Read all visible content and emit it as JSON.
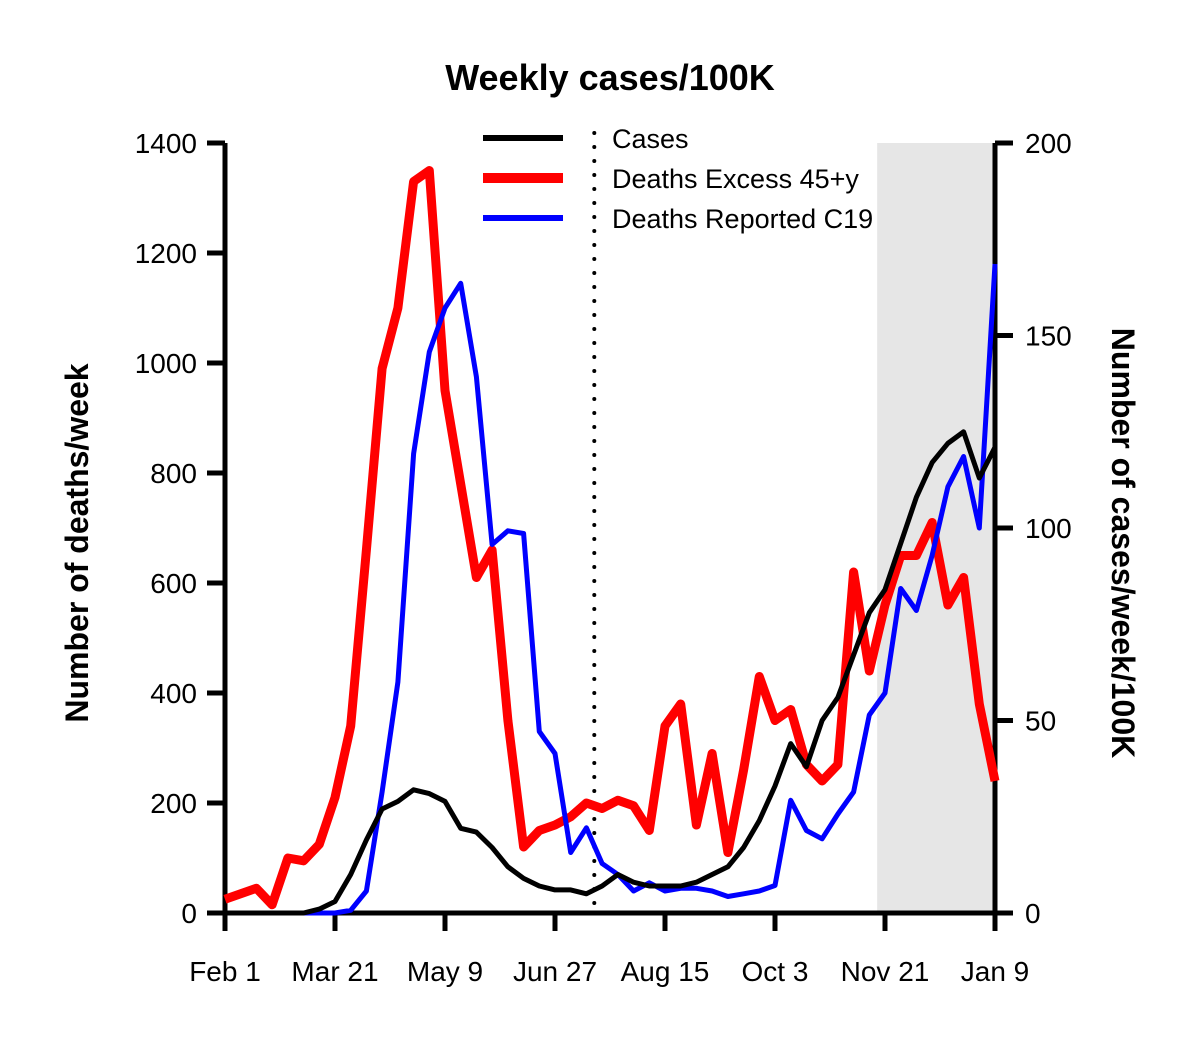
{
  "chart_data": {
    "type": "line",
    "title": "Weekly cases/100K",
    "xlabel": "",
    "ylabel": "Number of deaths/week",
    "ylabel_right": "Number of cases/week/100K",
    "x_ticks": [
      "Feb 1",
      "Mar 21",
      "May 9",
      "Jun 27",
      "Aug 15",
      "Oct 3",
      "Nov 21",
      "Jan 9"
    ],
    "x_range_weeks": [
      0,
      49
    ],
    "ylim": [
      0,
      1400
    ],
    "yticks": [
      0,
      200,
      400,
      600,
      800,
      1000,
      1200,
      1400
    ],
    "ylim_right": [
      0,
      200
    ],
    "yticks_right": [
      0,
      50,
      100,
      150,
      200
    ],
    "shaded_region_weeks": [
      41.5,
      49
    ],
    "dotted_vertical_line_week": 23.5,
    "legend_position": "top-center",
    "series": [
      {
        "name": "Cases",
        "axis": "right",
        "color": "#000000",
        "weeks": [
          0,
          1,
          2,
          3,
          4,
          5,
          6,
          7,
          8,
          9,
          10,
          11,
          12,
          13,
          14,
          15,
          16,
          17,
          18,
          19,
          20,
          21,
          22,
          23,
          24,
          25,
          26,
          27,
          28,
          29,
          30,
          31,
          32,
          33,
          34,
          35,
          36,
          37,
          38,
          39,
          40,
          41,
          42,
          43,
          44,
          45,
          46,
          47,
          48,
          49
        ],
        "values": [
          0,
          0,
          0,
          0,
          0,
          0,
          1,
          3,
          10,
          19,
          27,
          29,
          32,
          31,
          29,
          22,
          21,
          17,
          12,
          9,
          7,
          6,
          6,
          5,
          7,
          10,
          8,
          7,
          7,
          7,
          8,
          10,
          12,
          17,
          24,
          33,
          44,
          38,
          50,
          56,
          67,
          78,
          84,
          96,
          108,
          117,
          122,
          125,
          113,
          121
        ]
      },
      {
        "name": "Deaths Excess 45+y",
        "axis": "left",
        "color": "#ff0000",
        "weeks": [
          0,
          1,
          2,
          3,
          4,
          5,
          6,
          7,
          8,
          9,
          10,
          11,
          12,
          13,
          14,
          15,
          16,
          17,
          18,
          19,
          20,
          21,
          22,
          23,
          24,
          25,
          26,
          27,
          28,
          29,
          30,
          31,
          32,
          33,
          34,
          35,
          36,
          37,
          38,
          39,
          40,
          41,
          42,
          43,
          44,
          45,
          46,
          47,
          48,
          49
        ],
        "values": [
          25,
          35,
          45,
          15,
          100,
          95,
          125,
          210,
          340,
          660,
          990,
          1100,
          1330,
          1350,
          950,
          780,
          610,
          660,
          350,
          120,
          150,
          160,
          175,
          200,
          190,
          205,
          195,
          150,
          340,
          380,
          160,
          290,
          110,
          260,
          430,
          350,
          370,
          270,
          240,
          270,
          620,
          440,
          560,
          650,
          650,
          710,
          560,
          610,
          380,
          240
        ]
      },
      {
        "name": "Deaths Reported C19",
        "axis": "left",
        "color": "#0000ff",
        "weeks": [
          0,
          1,
          2,
          3,
          4,
          5,
          6,
          7,
          8,
          9,
          10,
          11,
          12,
          13,
          14,
          15,
          16,
          17,
          18,
          19,
          20,
          21,
          22,
          23,
          24,
          25,
          26,
          27,
          28,
          29,
          30,
          31,
          32,
          33,
          34,
          35,
          36,
          37,
          38,
          39,
          40,
          41,
          42,
          43,
          44,
          45,
          46,
          47,
          48,
          49
        ],
        "values": [
          0,
          0,
          0,
          0,
          0,
          0,
          0,
          0,
          5,
          40,
          220,
          420,
          835,
          1020,
          1100,
          1145,
          975,
          670,
          695,
          690,
          330,
          290,
          110,
          155,
          90,
          70,
          40,
          55,
          40,
          45,
          45,
          40,
          30,
          35,
          40,
          50,
          205,
          150,
          135,
          180,
          220,
          360,
          400,
          590,
          550,
          650,
          775,
          830,
          700,
          1180
        ]
      }
    ]
  }
}
